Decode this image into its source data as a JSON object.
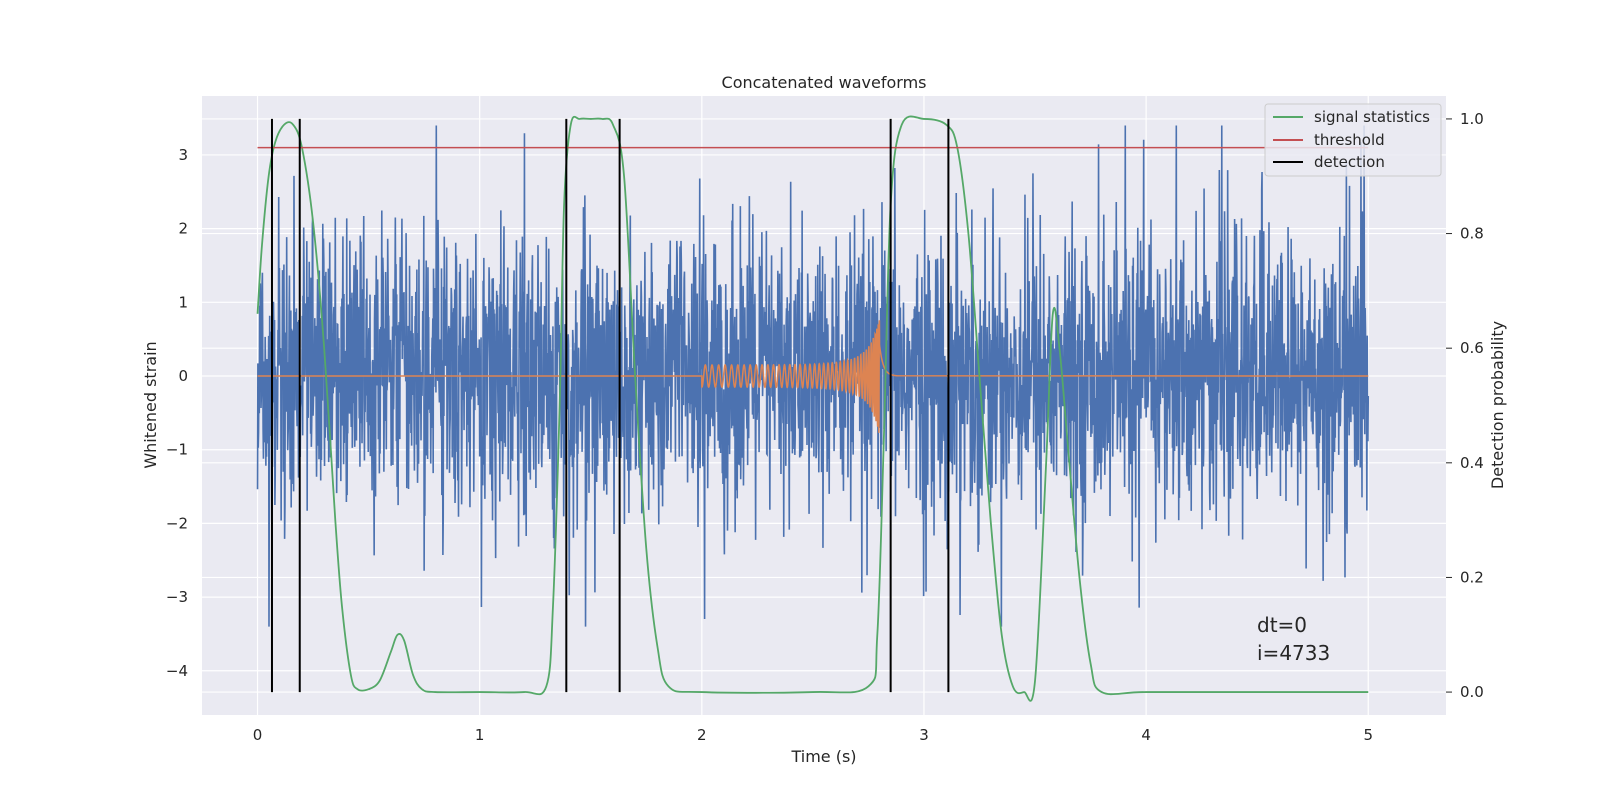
{
  "chart_data": {
    "type": "line",
    "title": "Concatenated waveforms",
    "xlabel": "Time (s)",
    "ylabel_left": "Whitened strain",
    "ylabel_right": "Detection probability",
    "xlim": [
      -0.25,
      5.35
    ],
    "ylim_left": [
      -4.6,
      3.8
    ],
    "ylim_right": [
      -0.04,
      1.04
    ],
    "x_ticks": [
      "0",
      "1",
      "2",
      "3",
      "4",
      "5"
    ],
    "x_tick_values": [
      0,
      1,
      2,
      3,
      4,
      5
    ],
    "y_left_ticks": [
      "−4",
      "−3",
      "−2",
      "−1",
      "0",
      "1",
      "2",
      "3"
    ],
    "y_left_tick_values": [
      -4,
      -3,
      -2,
      -1,
      0,
      1,
      2,
      3
    ],
    "y_right_ticks": [
      "0.0",
      "0.2",
      "0.4",
      "0.6",
      "0.8",
      "1.0"
    ],
    "y_right_tick_values": [
      0.0,
      0.2,
      0.4,
      0.6,
      0.8,
      1.0
    ],
    "grid": true,
    "legend_position": "upper right",
    "series": [
      {
        "name": "",
        "axis": "left",
        "color": "#4c72b0",
        "description_kind": "noise",
        "x_range": [
          0,
          5
        ],
        "amplitude_typical": 1.5,
        "amplitude_max": 3.4
      },
      {
        "name": "",
        "axis": "left",
        "color": "#dd8452",
        "description_kind": "chirp",
        "x_range": [
          2.0,
          2.88
        ],
        "amplitude_start": 0.15,
        "amplitude_peak": 0.9,
        "peak_time": 2.8
      },
      {
        "name": "signal statistics",
        "axis": "right",
        "color": "#55a868",
        "x": [
          0.0,
          0.02,
          0.05,
          0.08,
          0.12,
          0.16,
          0.2,
          0.25,
          0.3,
          0.35,
          0.38,
          0.42,
          0.45,
          0.5,
          0.55,
          0.6,
          0.63,
          0.66,
          0.7,
          0.74,
          0.8,
          1.0,
          1.2,
          1.3,
          1.33,
          1.36,
          1.38,
          1.41,
          1.45,
          1.5,
          1.55,
          1.6,
          1.65,
          1.7,
          1.75,
          1.8,
          1.85,
          2.0,
          2.5,
          2.75,
          2.79,
          2.82,
          2.85,
          2.9,
          3.0,
          3.1,
          3.15,
          3.2,
          3.25,
          3.3,
          3.35,
          3.4,
          3.45,
          3.5,
          3.55,
          3.58,
          3.61,
          3.65,
          3.7,
          3.75,
          3.8,
          4.0,
          4.5,
          5.0
        ],
        "y": [
          0.66,
          0.78,
          0.9,
          0.96,
          0.99,
          0.99,
          0.95,
          0.82,
          0.6,
          0.3,
          0.15,
          0.03,
          0.005,
          0.005,
          0.02,
          0.07,
          0.1,
          0.09,
          0.03,
          0.005,
          0.0,
          0.0,
          0.0,
          0.01,
          0.15,
          0.5,
          0.85,
          0.99,
          1.0,
          1.0,
          1.0,
          0.99,
          0.9,
          0.55,
          0.25,
          0.08,
          0.01,
          0.0,
          0.0,
          0.01,
          0.1,
          0.45,
          0.85,
          0.99,
          1.0,
          0.99,
          0.95,
          0.8,
          0.55,
          0.3,
          0.1,
          0.01,
          0.0,
          0.02,
          0.4,
          0.66,
          0.6,
          0.42,
          0.2,
          0.05,
          0.0,
          0.0,
          0.0,
          0.0
        ]
      },
      {
        "name": "threshold",
        "axis": "right",
        "color": "#c44e52",
        "x": [
          0,
          5
        ],
        "y": [
          0.95,
          0.95
        ]
      },
      {
        "name": "detection",
        "axis": "right",
        "color": "#000000",
        "kind": "vertical-lines",
        "x": [
          0.065,
          0.19,
          1.39,
          1.63,
          2.85,
          3.11
        ],
        "y_range": [
          0.0,
          1.0
        ]
      }
    ],
    "annotation_lines": [
      "dt=0",
      "i=4733"
    ]
  }
}
